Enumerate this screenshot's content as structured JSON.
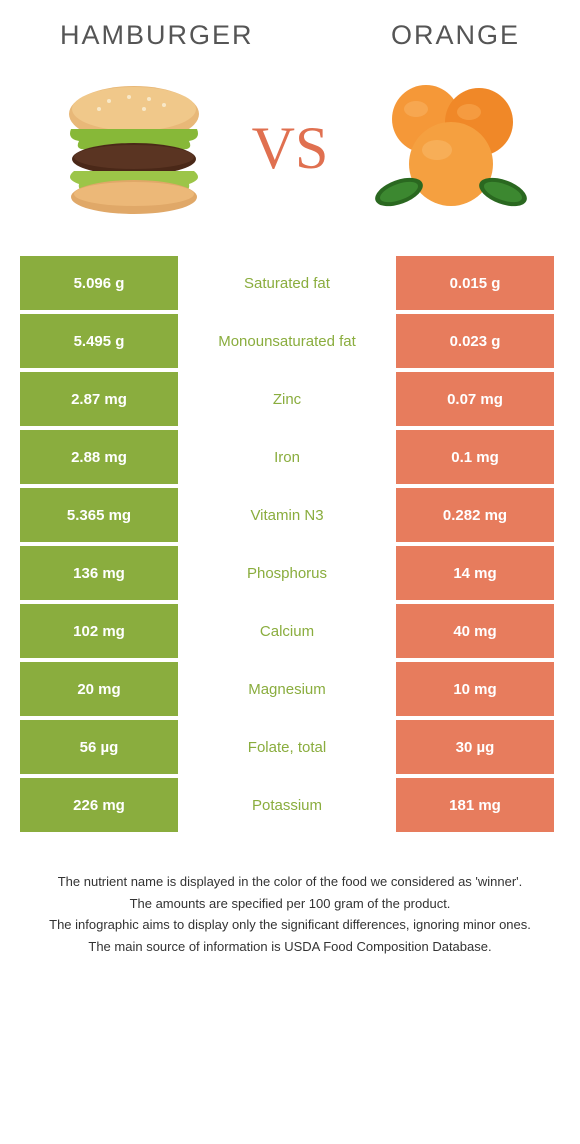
{
  "header": {
    "left_title": "HAMBURGER",
    "right_title": "ORANGE",
    "vs_label": "VS"
  },
  "colors": {
    "left": "#8aad3e",
    "right": "#e77c5d",
    "mid_bg": "#ffffff",
    "mid_left_text": "#8aad3e",
    "mid_right_text": "#e77c5d",
    "vs_color": "#e07050"
  },
  "rows": [
    {
      "left": "5.096 g",
      "label": "Saturated fat",
      "right": "0.015 g",
      "winner": "left"
    },
    {
      "left": "5.495 g",
      "label": "Monounsaturated fat",
      "right": "0.023 g",
      "winner": "left"
    },
    {
      "left": "2.87 mg",
      "label": "Zinc",
      "right": "0.07 mg",
      "winner": "left"
    },
    {
      "left": "2.88 mg",
      "label": "Iron",
      "right": "0.1 mg",
      "winner": "left"
    },
    {
      "left": "5.365 mg",
      "label": "Vitamin N3",
      "right": "0.282 mg",
      "winner": "left"
    },
    {
      "left": "136 mg",
      "label": "Phosphorus",
      "right": "14 mg",
      "winner": "left"
    },
    {
      "left": "102 mg",
      "label": "Calcium",
      "right": "40 mg",
      "winner": "left"
    },
    {
      "left": "20 mg",
      "label": "Magnesium",
      "right": "10 mg",
      "winner": "left"
    },
    {
      "left": "56 µg",
      "label": "Folate, total",
      "right": "30 µg",
      "winner": "left"
    },
    {
      "left": "226 mg",
      "label": "Potassium",
      "right": "181 mg",
      "winner": "left"
    }
  ],
  "footer": {
    "line1": "The nutrient name is displayed in the color of the food we considered as 'winner'.",
    "line2": "The amounts are specified per 100 gram of the product.",
    "line3": "The infographic aims to display only the significant differences, ignoring minor ones.",
    "line4": "The main source of information is USDA Food Composition Database."
  }
}
